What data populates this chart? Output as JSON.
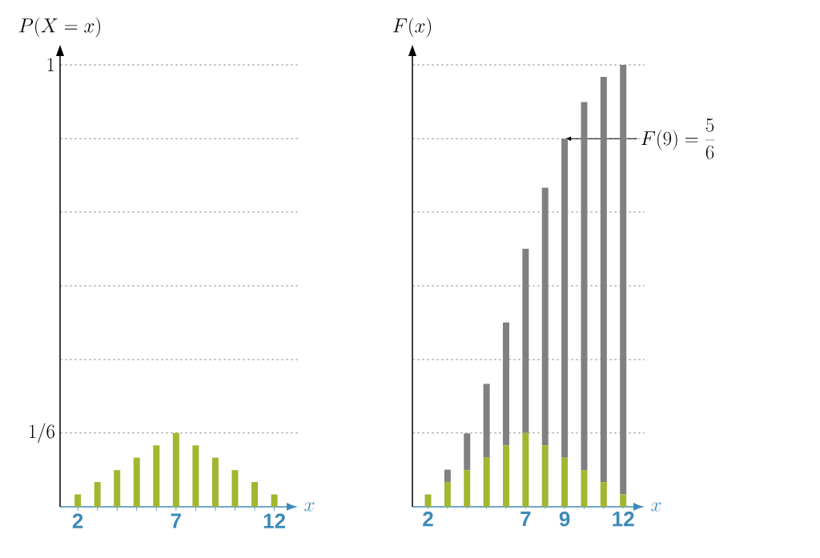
{
  "chart_data": [
    {
      "type": "bar",
      "xlabel": "x",
      "ylabel": "P(X=x)",
      "x": [
        2,
        3,
        4,
        5,
        6,
        7,
        8,
        9,
        10,
        11,
        12
      ],
      "values": [
        0.028,
        0.056,
        0.083,
        0.111,
        0.139,
        0.167,
        0.139,
        0.111,
        0.083,
        0.056,
        0.028
      ],
      "color": "#a3b630",
      "xlim": [
        1.1,
        13.2
      ],
      "xticks": [
        2,
        {
          "value": 3,
          "label": null
        },
        {
          "value": 4,
          "label": null
        },
        {
          "value": 5,
          "label": null
        },
        {
          "value": 6,
          "label": null
        },
        7,
        {
          "value": 8,
          "label": null
        },
        {
          "value": 9,
          "label": null
        },
        {
          "value": 10,
          "label": null
        },
        {
          "value": 11,
          "label": null
        },
        12
      ],
      "ylim": [
        0,
        1.02
      ],
      "yticks": [
        {
          "value": 0.167,
          "label": "1/6"
        },
        {
          "value": 0.333,
          "label": null
        },
        {
          "value": 0.5,
          "label": null
        },
        {
          "value": 0.667,
          "label": null
        },
        {
          "value": 0.833,
          "label": null
        },
        {
          "value": 1,
          "label": "1"
        }
      ],
      "grid": "y"
    },
    {
      "type": "bar",
      "stacked": true,
      "xlabel": "x",
      "ylabel": "F(x)",
      "x": [
        2,
        3,
        4,
        5,
        6,
        7,
        8,
        9,
        10,
        11,
        12
      ],
      "series": [
        {
          "color": "#a3b630",
          "values": [
            0.028,
            0.056,
            0.083,
            0.111,
            0.139,
            0.167,
            0.139,
            0.111,
            0.083,
            0.056,
            0.028
          ]
        },
        {
          "color": "#808080",
          "values": [
            0,
            0.028,
            0.083,
            0.167,
            0.278,
            0.417,
            0.583,
            0.722,
            0.833,
            0.917,
            0.972
          ]
        }
      ],
      "xlim": [
        1.2,
        13.1
      ],
      "xticks": [
        2,
        {
          "value": 3,
          "label": null
        },
        {
          "value": 4,
          "label": null
        },
        {
          "value": 5,
          "label": null
        },
        {
          "value": 6,
          "label": null
        },
        7,
        {
          "value": 8,
          "label": null
        },
        9,
        {
          "value": 10,
          "label": null
        },
        {
          "value": 11,
          "label": null
        },
        12
      ],
      "ylim": [
        0,
        1.02
      ],
      "yticks": [
        {
          "value": 0.167,
          "label": null
        },
        {
          "value": 0.333,
          "label": null
        },
        {
          "value": 0.5,
          "label": null
        },
        {
          "value": 0.667,
          "label": null
        },
        {
          "value": 0.833,
          "label": null
        },
        {
          "value": 1,
          "label": null
        }
      ],
      "tick_labels": "x",
      "grid": "y",
      "annotations": [
        {
          "text": "F(9)=\\frac{5}{6}",
          "x": 9,
          "y": 0.833
        }
      ]
    }
  ]
}
